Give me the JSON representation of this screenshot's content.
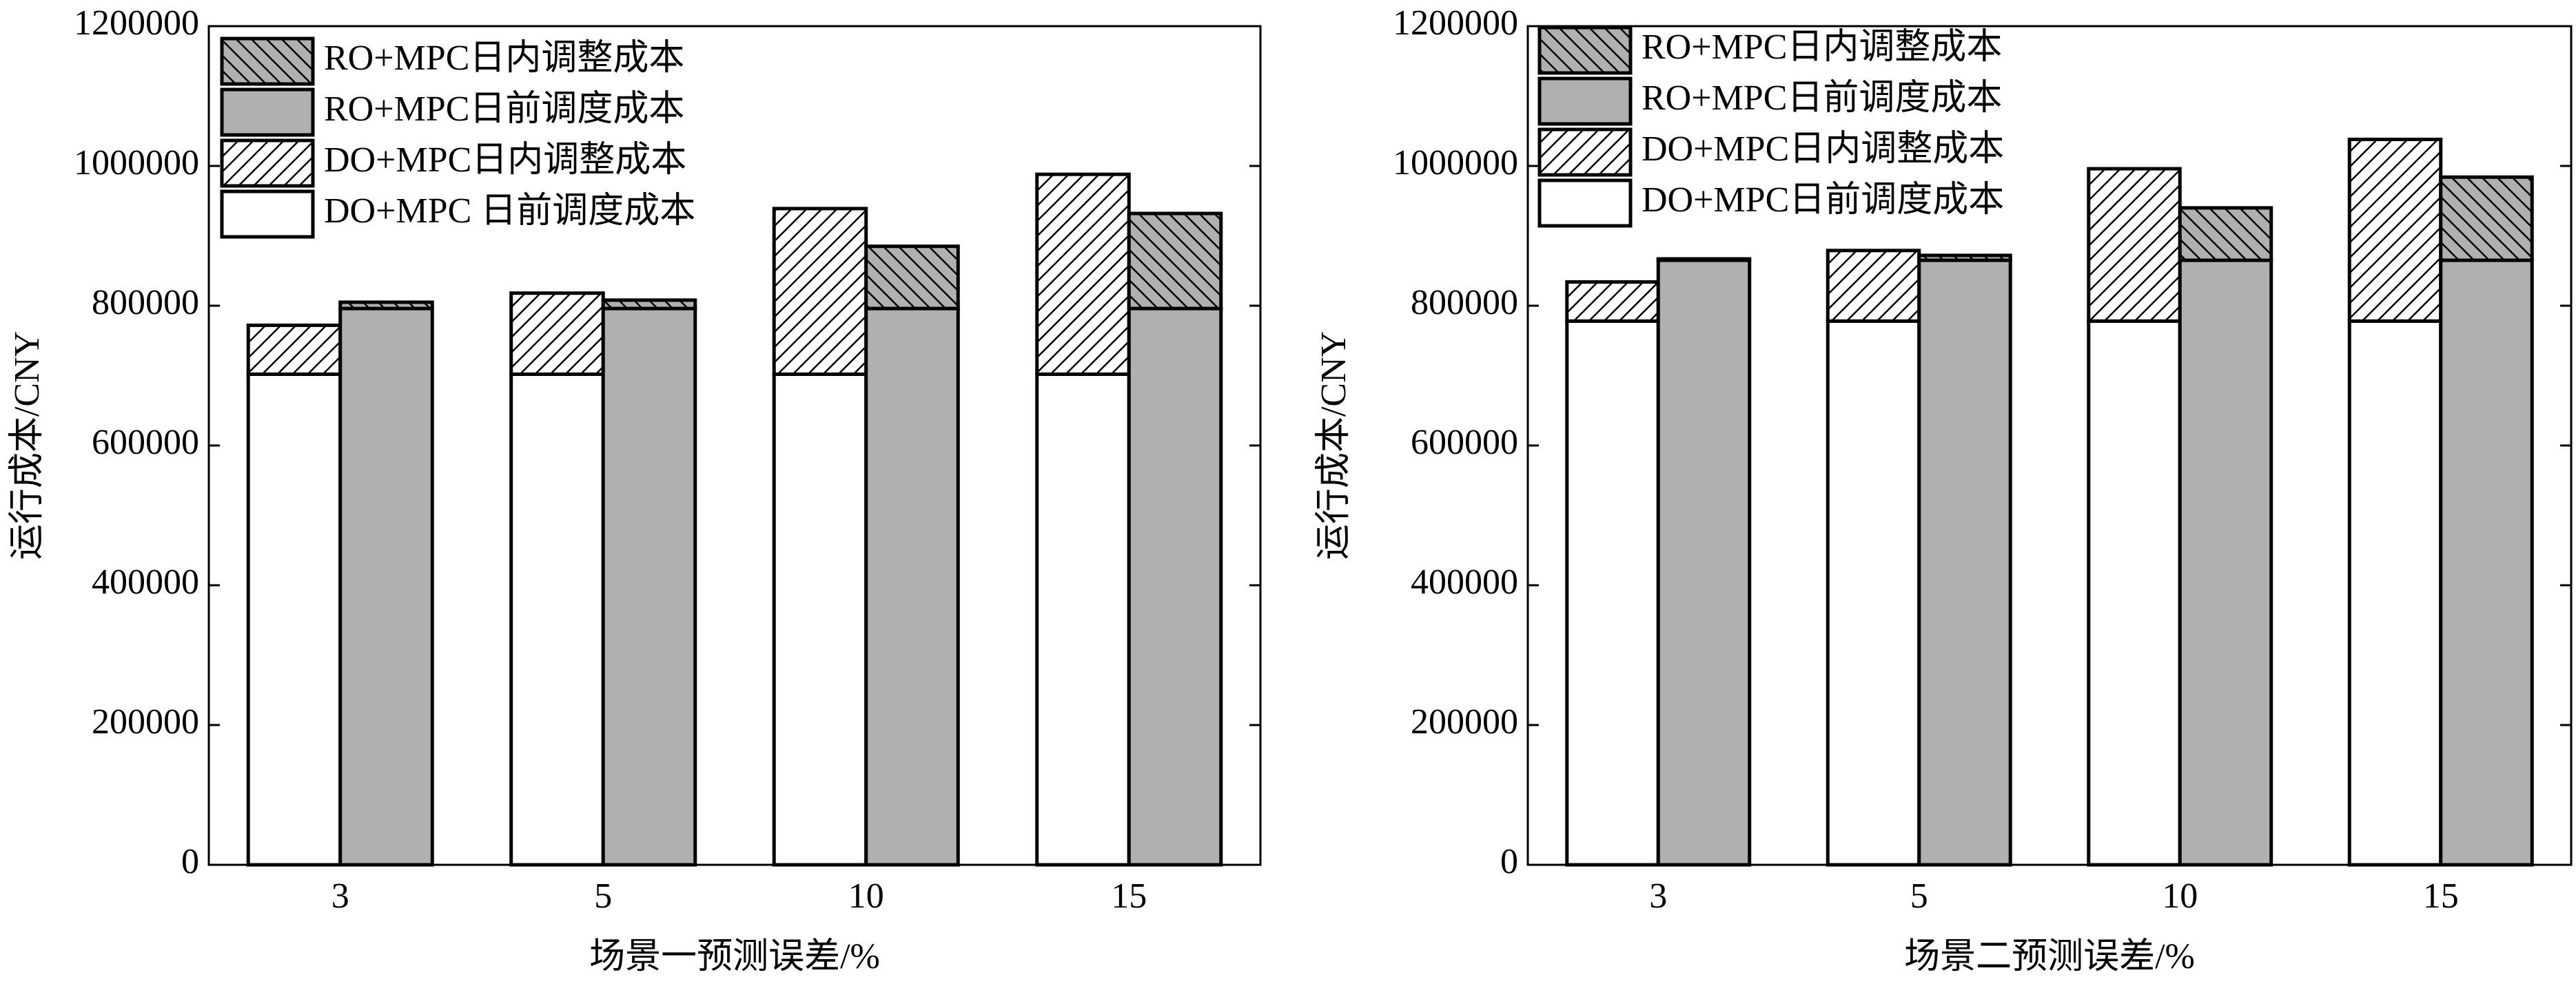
{
  "chart_data": [
    {
      "type": "bar",
      "x_label": "场景一预测误差/%",
      "y_label": "运行成本/CNY",
      "categories": [
        "3",
        "5",
        "10",
        "15"
      ],
      "ylim": [
        0,
        1200000
      ],
      "yticks": [
        0,
        200000,
        400000,
        600000,
        800000,
        1000000,
        1200000
      ],
      "series": [
        {
          "name": "DO+MPC 日前调度成本",
          "color": "#ffffff",
          "hatch": "none",
          "values": [
            702000,
            702000,
            702000,
            702000
          ]
        },
        {
          "name": "DO+MPC日内调整成本",
          "color": "#ffffff",
          "hatch": "/",
          "values": [
            70000,
            116000,
            237000,
            286000
          ]
        },
        {
          "name": "RO+MPC日前调度成本",
          "color": "#b0b0b0",
          "hatch": "none",
          "values": [
            796000,
            796000,
            796000,
            796000
          ]
        },
        {
          "name": "RO+MPC日内调整成本",
          "color": "#b0b0b0",
          "hatch": "\\",
          "values": [
            9000,
            12000,
            89000,
            136000
          ]
        }
      ]
    },
    {
      "type": "bar",
      "x_label": "场景二预测误差/%",
      "y_label": "运行成本/CNY",
      "categories": [
        "3",
        "5",
        "10",
        "15"
      ],
      "ylim": [
        0,
        1200000
      ],
      "yticks": [
        0,
        200000,
        400000,
        600000,
        800000,
        1000000,
        1200000
      ],
      "series": [
        {
          "name": "DO+MPC日前调度成本",
          "color": "#ffffff",
          "hatch": "none",
          "values": [
            778000,
            778000,
            778000,
            778000
          ]
        },
        {
          "name": "DO+MPC日内调整成本",
          "color": "#ffffff",
          "hatch": "/",
          "values": [
            56000,
            101000,
            218000,
            260000
          ]
        },
        {
          "name": "RO+MPC日前调度成本",
          "color": "#b0b0b0",
          "hatch": "none",
          "values": [
            865000,
            865000,
            865000,
            865000
          ]
        },
        {
          "name": "RO+MPC日内调整成本",
          "color": "#b0b0b0",
          "hatch": "\\",
          "values": [
            2000,
            7000,
            75000,
            119000
          ]
        }
      ]
    }
  ]
}
